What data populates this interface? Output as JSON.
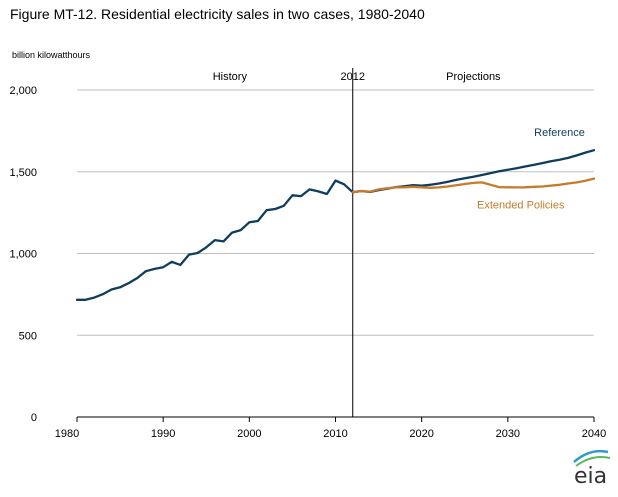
{
  "chart_data": {
    "type": "line",
    "title": "Figure MT-12. Residential electricity sales in two cases, 1980-2040",
    "ylabel": "billion kilowatthours",
    "xlabel": "",
    "xlim": [
      1980,
      2040
    ],
    "ylim": [
      0,
      2000
    ],
    "x_ticks": [
      1980,
      1990,
      2000,
      2010,
      2020,
      2030,
      2040
    ],
    "y_ticks": [
      0,
      500,
      1000,
      1500,
      2000
    ],
    "y_tick_labels": [
      "0",
      "500",
      "1,000",
      "1,500",
      "2,000"
    ],
    "grid": true,
    "divider": {
      "x": 2012,
      "label": "2012"
    },
    "regions": {
      "left": "History",
      "right": "Projections"
    },
    "series": [
      {
        "name": "Reference",
        "color": "#0f3d5e",
        "x": [
          1980,
          1981,
          1982,
          1983,
          1984,
          1985,
          1986,
          1987,
          1988,
          1989,
          1990,
          1991,
          1992,
          1993,
          1994,
          1995,
          1996,
          1997,
          1998,
          1999,
          2000,
          2001,
          2002,
          2003,
          2004,
          2005,
          2006,
          2007,
          2008,
          2009,
          2010,
          2011,
          2012,
          2013,
          2014,
          2015,
          2016,
          2017,
          2018,
          2019,
          2020,
          2021,
          2022,
          2023,
          2024,
          2025,
          2026,
          2027,
          2028,
          2029,
          2030,
          2031,
          2032,
          2033,
          2034,
          2035,
          2036,
          2037,
          2038,
          2039,
          2040
        ],
        "values": [
          717,
          717,
          730,
          751,
          780,
          793,
          819,
          850,
          892,
          906,
          916,
          949,
          930,
          993,
          1003,
          1038,
          1082,
          1074,
          1128,
          1143,
          1191,
          1199,
          1265,
          1272,
          1292,
          1356,
          1351,
          1392,
          1380,
          1364,
          1446,
          1423,
          1375,
          1382,
          1376,
          1388,
          1396,
          1406,
          1411,
          1418,
          1415,
          1420,
          1428,
          1438,
          1450,
          1460,
          1470,
          1480,
          1492,
          1503,
          1512,
          1522,
          1532,
          1542,
          1553,
          1564,
          1574,
          1585,
          1600,
          1617,
          1632
        ]
      },
      {
        "name": "Extended Policies",
        "color": "#c57b2c",
        "x": [
          2012,
          2013,
          2014,
          2015,
          2016,
          2017,
          2018,
          2019,
          2020,
          2021,
          2022,
          2023,
          2024,
          2025,
          2026,
          2027,
          2028,
          2029,
          2030,
          2031,
          2032,
          2033,
          2034,
          2035,
          2036,
          2037,
          2038,
          2039,
          2040
        ],
        "values": [
          1375,
          1382,
          1378,
          1392,
          1399,
          1404,
          1405,
          1408,
          1405,
          1402,
          1404,
          1410,
          1418,
          1425,
          1432,
          1435,
          1420,
          1406,
          1405,
          1404,
          1405,
          1408,
          1410,
          1415,
          1420,
          1428,
          1435,
          1445,
          1458
        ]
      }
    ]
  },
  "logo": {
    "text": "eia"
  }
}
